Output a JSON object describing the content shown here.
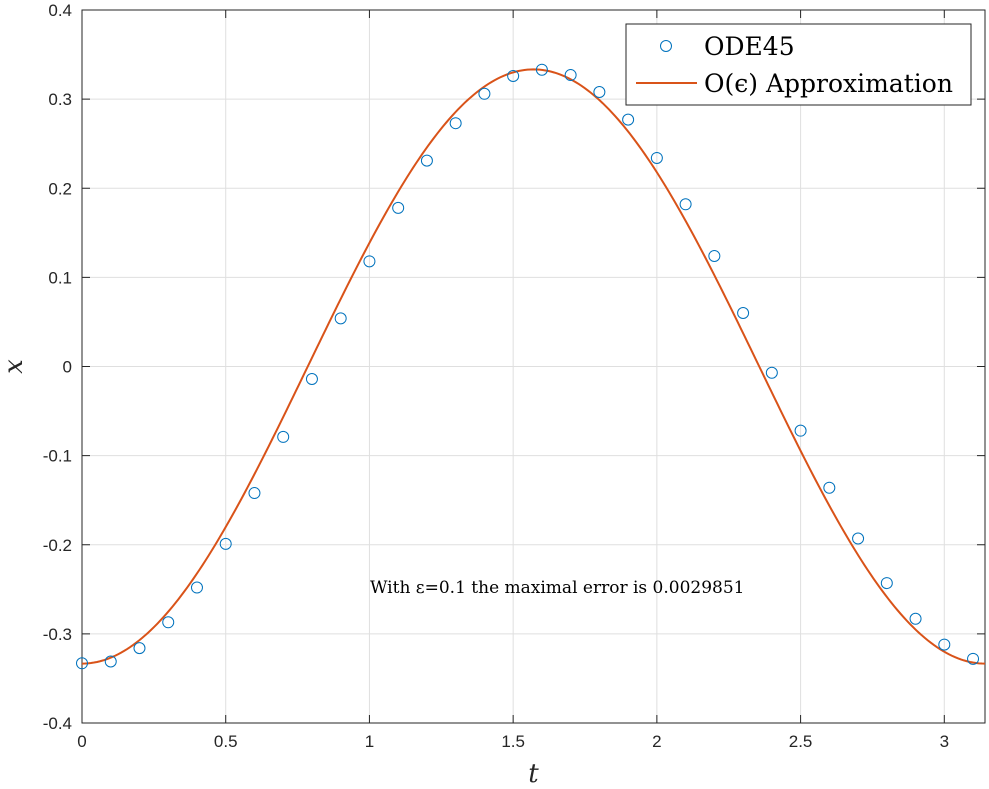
{
  "chart_data": {
    "type": "line",
    "xlabel": "t",
    "ylabel": "x",
    "xlim": [
      0,
      3.1416
    ],
    "ylim": [
      -0.4,
      0.4
    ],
    "xticks": [
      "0",
      "0.5",
      "1",
      "1.5",
      "2",
      "2.5",
      "3"
    ],
    "yticks": [
      "0.4",
      "0.3",
      "0.2",
      "0.1",
      "0",
      "-0.1",
      "-0.2",
      "-0.3",
      "-0.4"
    ],
    "grid": true,
    "legend_position": "top-right",
    "annotation": "With ε=0.1 the maximal error is 0.0029851",
    "series": [
      {
        "name": "ODE45",
        "style": "markers",
        "marker": "circle",
        "color": "#0072BD",
        "x": [
          0,
          0.1,
          0.2,
          0.3,
          0.4,
          0.5,
          0.6,
          0.7,
          0.8,
          0.9,
          1.0,
          1.1,
          1.2,
          1.3,
          1.4,
          1.5,
          1.6,
          1.7,
          1.8,
          1.9,
          2.0,
          2.1,
          2.2,
          2.3,
          2.4,
          2.5,
          2.6,
          2.7,
          2.8,
          2.9,
          3.0,
          3.1
        ],
        "y": [
          -0.333,
          -0.331,
          -0.316,
          -0.287,
          -0.248,
          -0.199,
          -0.142,
          -0.079,
          -0.014,
          0.054,
          0.118,
          0.178,
          0.231,
          0.273,
          0.306,
          0.326,
          0.333,
          0.327,
          0.308,
          0.277,
          0.234,
          0.182,
          0.124,
          0.06,
          -0.007,
          -0.072,
          -0.136,
          -0.193,
          -0.243,
          -0.283,
          -0.312,
          -0.328
        ]
      },
      {
        "name": "O(ϵ) Approximation",
        "style": "line",
        "color": "#D95319",
        "formula": "-(1/3)*cos(2t)",
        "x_range": [
          0,
          3.1416
        ]
      }
    ]
  }
}
